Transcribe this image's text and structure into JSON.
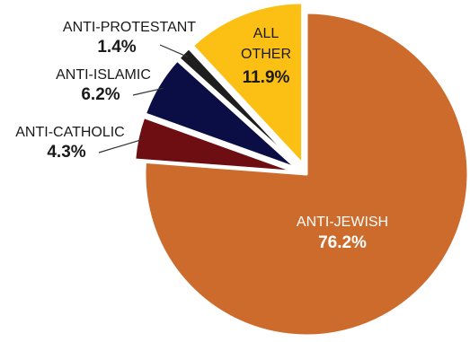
{
  "chart_data": {
    "type": "pie",
    "title": "",
    "slices": [
      {
        "label": "ANTI-JEWISH",
        "value": 76.2,
        "value_label": "76.2%",
        "color": "#CC6B2B",
        "label_color": "#ffffff",
        "exploded": false
      },
      {
        "label": "ANTI-CATHOLIC",
        "value": 4.3,
        "value_label": "4.3%",
        "color": "#6E0D12",
        "label_color": "#1a1a1a",
        "exploded": true
      },
      {
        "label": "ANTI-ISLAMIC",
        "value": 6.2,
        "value_label": "6.2%",
        "color": "#0B0D45",
        "label_color": "#1a1a1a",
        "exploded": true
      },
      {
        "label": "ANTI-PROTESTANT",
        "value": 1.4,
        "value_label": "1.4%",
        "color": "#1E1E1E",
        "label_color": "#1a1a1a",
        "exploded": true
      },
      {
        "label": "ALL OTHER",
        "value": 11.9,
        "value_label": "11.9%",
        "color": "#FBC013",
        "label_color": "#1a1a1a",
        "exploded": true
      }
    ]
  }
}
